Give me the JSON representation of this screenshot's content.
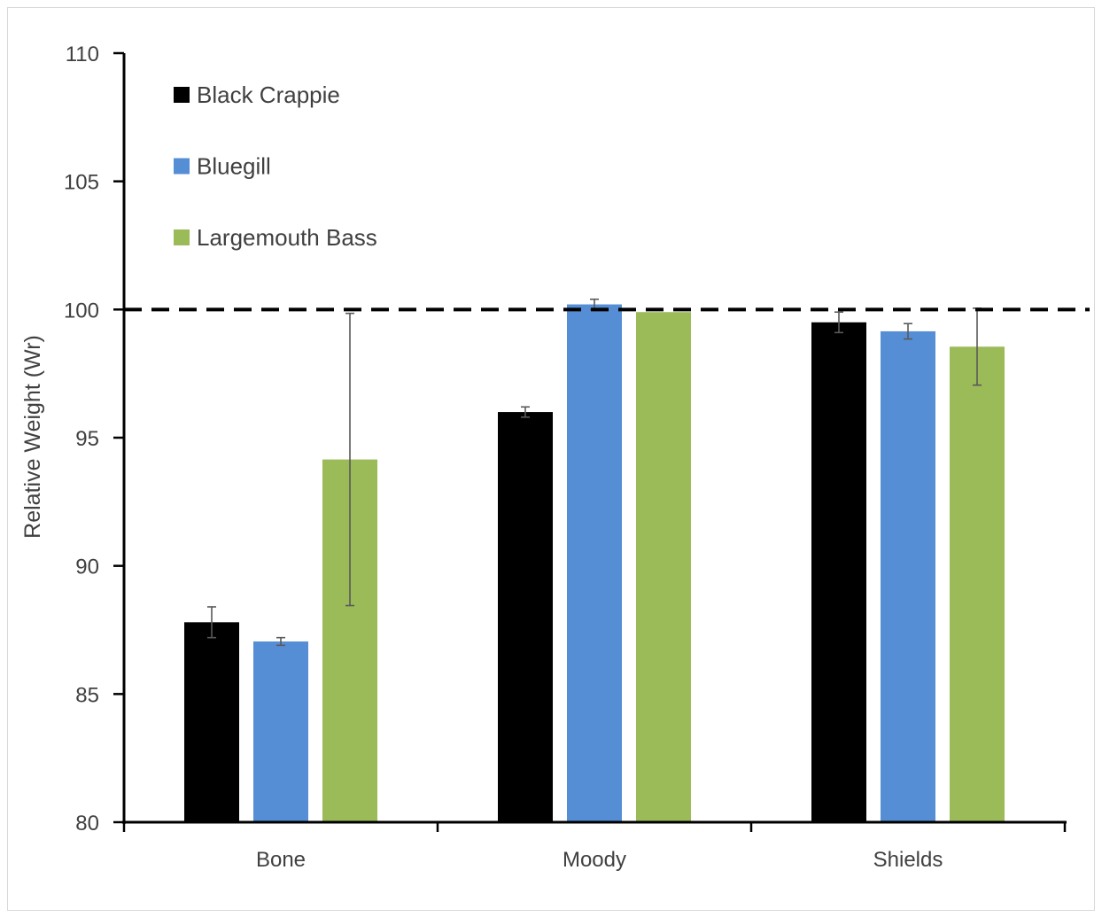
{
  "chart_data": {
    "type": "bar",
    "title": "",
    "xlabel": "",
    "ylabel": "Relative Weight (Wr)",
    "ylim": [
      80,
      110
    ],
    "yticks": [
      80,
      85,
      90,
      95,
      100,
      105,
      110
    ],
    "categories": [
      "Bone",
      "Moody",
      "Shields"
    ],
    "reference_line": {
      "value": 100,
      "style": "dashed",
      "color": "#000000"
    },
    "legend_position": "top-left",
    "grid": false,
    "series": [
      {
        "name": "Black Crappie",
        "color": "#000000",
        "values": [
          87.8,
          96.0,
          99.5
        ],
        "errors": [
          0.6,
          0.2,
          0.4
        ]
      },
      {
        "name": "Bluegill",
        "color": "#558ED5",
        "values": [
          87.05,
          100.2,
          99.15
        ],
        "errors": [
          0.15,
          0.2,
          0.3
        ]
      },
      {
        "name": "Largemouth Bass",
        "color": "#9BBB59",
        "values": [
          94.15,
          99.9,
          98.55
        ],
        "errors": [
          5.7,
          0.0,
          1.5
        ]
      }
    ]
  }
}
